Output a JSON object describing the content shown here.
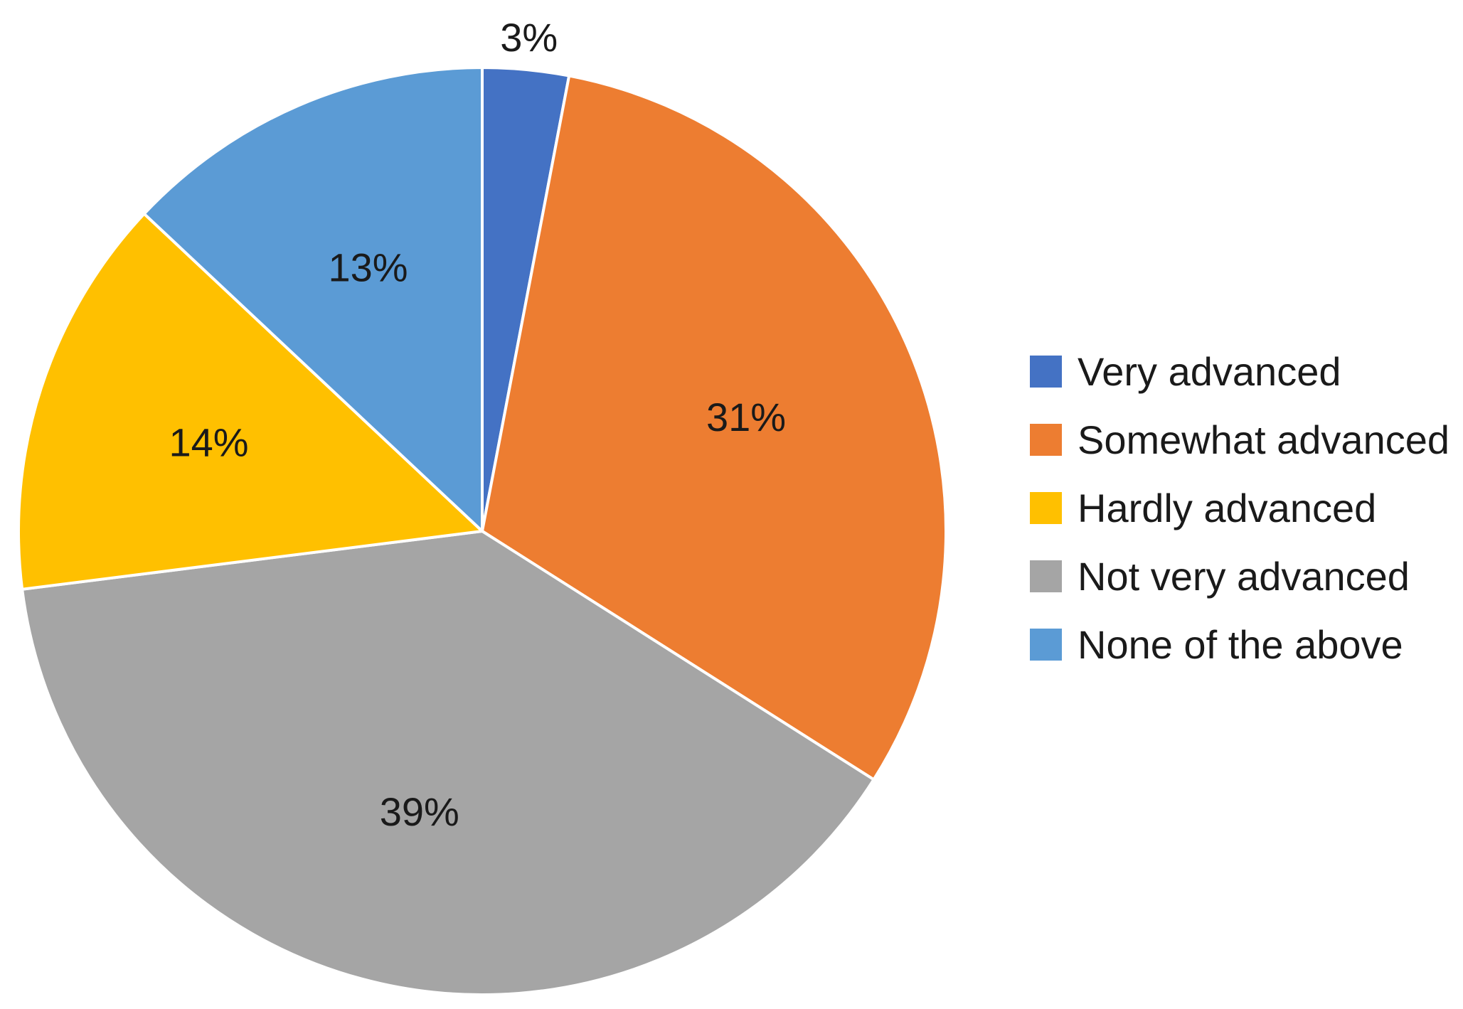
{
  "chart_data": {
    "type": "pie",
    "categories": [
      "Very advanced",
      "Somewhat advanced",
      "Hardly advanced",
      "Not very advanced",
      "None of the above"
    ],
    "values": [
      3,
      31,
      14,
      39,
      13
    ],
    "order_clockwise_from_top": [
      "Very advanced",
      "Somewhat advanced",
      "Not very advanced",
      "Hardly advanced",
      "None of the above"
    ],
    "data_labels": {
      "Very advanced": "3%",
      "Somewhat advanced": "31%",
      "Hardly advanced": "14%",
      "Not very advanced": "39%",
      "None of the above": "13%"
    },
    "colors": {
      "Very advanced": "#4472C4",
      "Somewhat advanced": "#ED7D31",
      "Hardly advanced": "#FFC000",
      "Not very advanced": "#A5A5A5",
      "None of the above": "#5B9BD5"
    },
    "legend": {
      "position": "right",
      "entries": [
        "Very advanced",
        "Somewhat advanced",
        "Hardly advanced",
        "Not very advanced",
        "None of the above"
      ]
    }
  }
}
